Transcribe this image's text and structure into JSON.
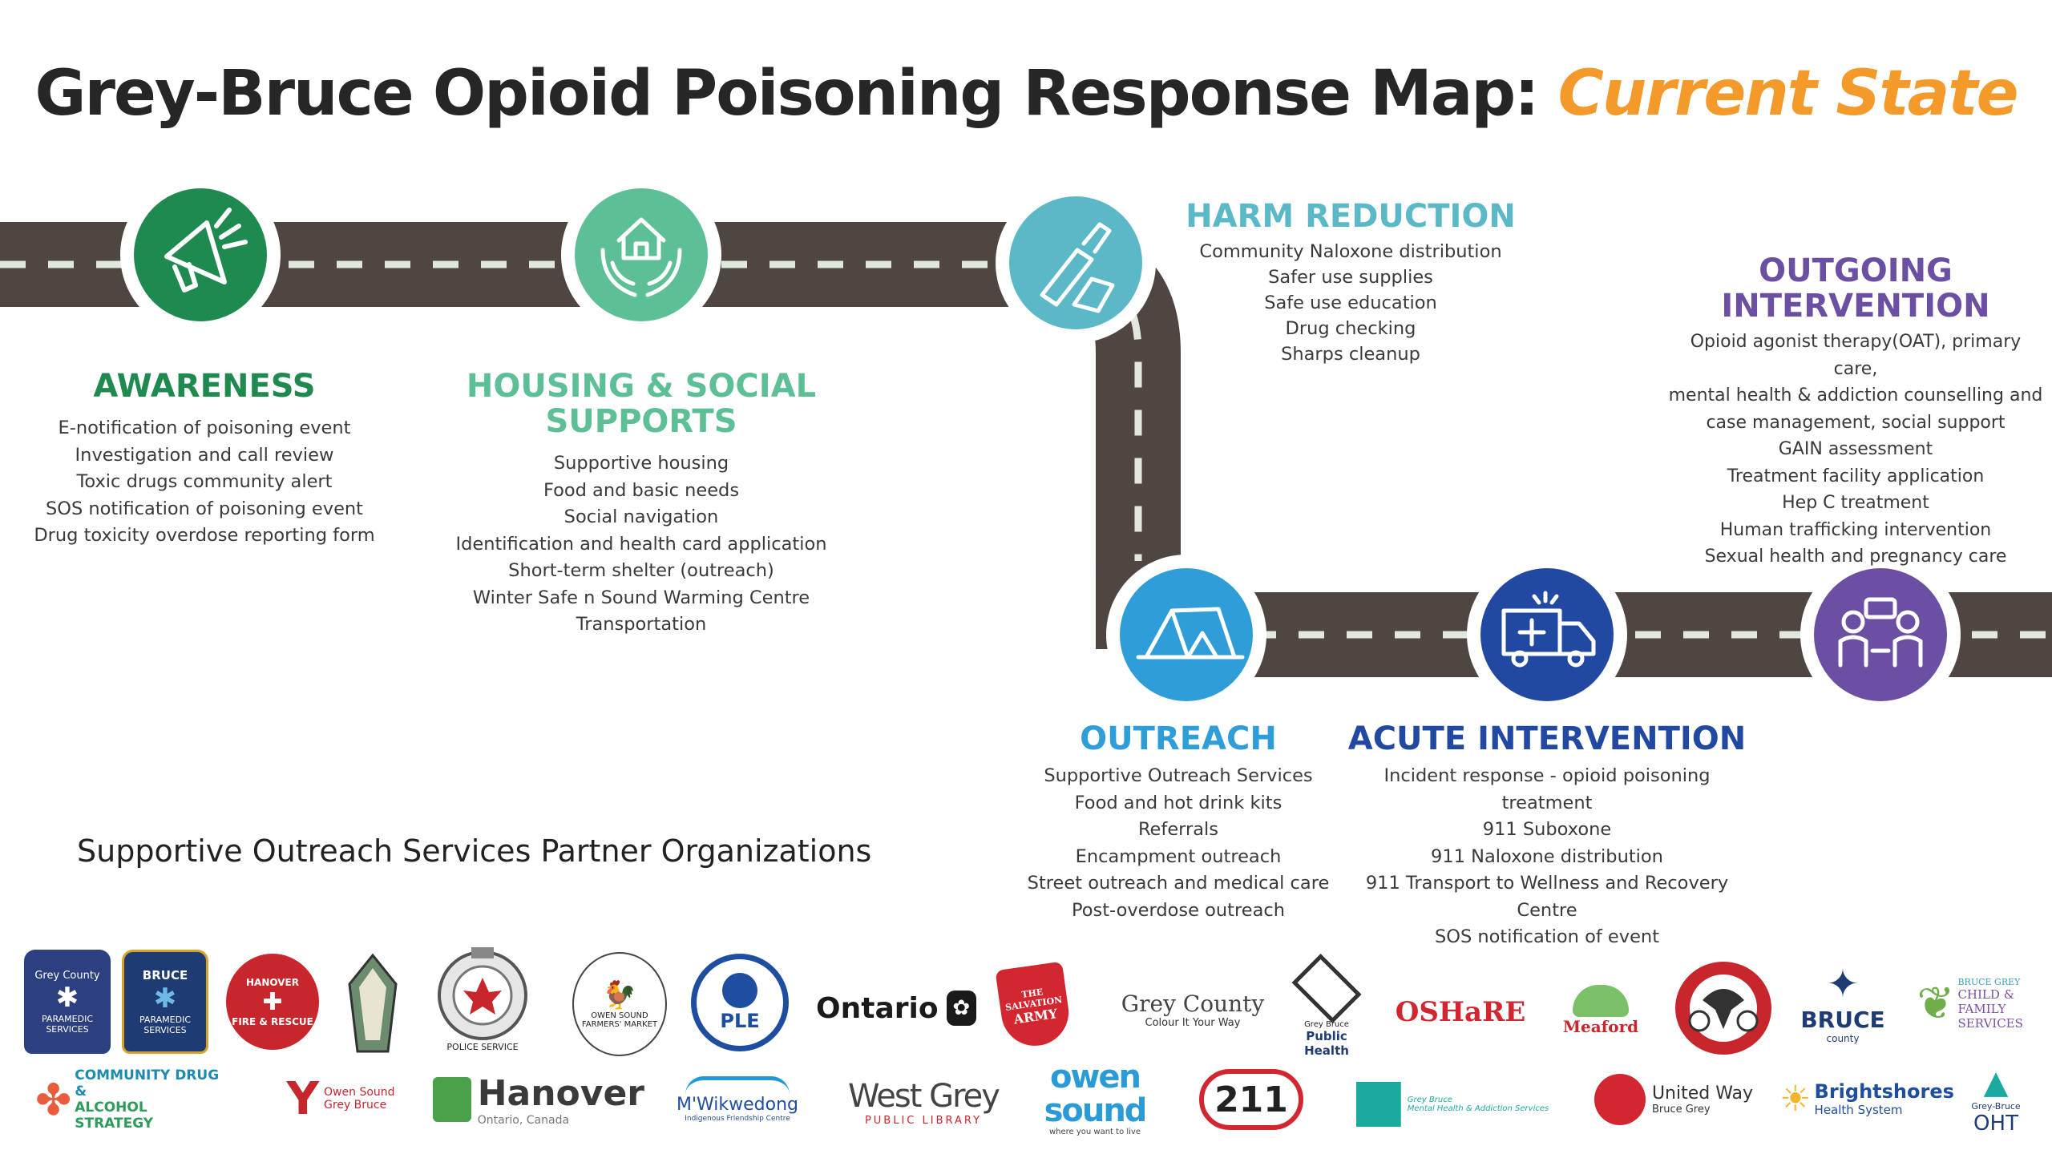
{
  "title": {
    "main": "Grey-Bruce Opioid Poisoning Response Map:",
    "highlight": "Current State"
  },
  "colors": {
    "road": "#4f4642",
    "dash": "#e3e8df",
    "awareness": "#1f8a4f",
    "housing": "#5cbf95",
    "harm": "#5bb8c6",
    "outreach": "#2f9ed8",
    "acute": "#2249a1",
    "outgoing": "#6a4fa3",
    "accent": "#f39a2b"
  },
  "stages": {
    "awareness": {
      "icon": "megaphone-icon",
      "title": "AWARENESS",
      "items": [
        "E-notification of poisoning event",
        "Investigation and call review",
        "Toxic drugs community alert",
        "SOS notification of poisoning event",
        "Drug toxicity overdose reporting form"
      ]
    },
    "housing": {
      "icon": "house-hands-icon",
      "title_line1": "HOUSING & SOCIAL",
      "title_line2": "SUPPORTS",
      "items": [
        "Supportive housing",
        "Food and basic needs",
        "Social navigation",
        "Identification and health card application",
        "Short-term shelter (outreach)",
        "Winter Safe n Sound Warming Centre",
        "Transportation"
      ]
    },
    "harm_reduction": {
      "icon": "naloxone-icon",
      "title": "HARM REDUCTION",
      "items": [
        "Community Naloxone distribution",
        "Safer use supplies",
        "Safe use education",
        "Drug checking",
        "Sharps cleanup"
      ]
    },
    "outreach": {
      "icon": "tent-icon",
      "title": "OUTREACH",
      "items": [
        "Supportive Outreach Services",
        "Food and hot drink kits",
        "Referrals",
        "Encampment outreach",
        "Street outreach and medical care",
        "Post-overdose outreach"
      ]
    },
    "acute": {
      "icon": "ambulance-icon",
      "title": "ACUTE INTERVENTION",
      "items": [
        "Incident response - opioid poisoning treatment",
        "911 Suboxone",
        "911 Naloxone distribution",
        "911 Transport to Wellness and Recovery Centre",
        "SOS notification of event"
      ]
    },
    "outgoing": {
      "icon": "counselling-icon",
      "title_line1": "OUTGOING",
      "title_line2": "INTERVENTION",
      "items": [
        "Opioid agonist therapy(OAT), primary care,",
        "mental health & addiction counselling and",
        "case management, social support",
        "GAIN assessment",
        "Treatment facility application",
        "Hep C treatment",
        "Human trafficking intervention",
        "Sexual health and pregnancy care"
      ]
    }
  },
  "partners_heading": "Supportive Outreach Services Partner Organizations",
  "logos_row1": [
    {
      "l1": "Grey County",
      "l2": "PARAMEDIC SERVICES"
    },
    {
      "l1": "BRUCE",
      "l2": "PARAMEDIC SERVICES"
    },
    {
      "l1": "HANOVER",
      "l2": "FIRE & RESCUE"
    },
    {
      "l1": "",
      "l2": ""
    },
    {
      "l1": "OWEN SOUND",
      "l2": "POLICE SERVICE"
    },
    {
      "l1": "OWEN SOUND",
      "l2": "FARMERS' MARKET"
    },
    {
      "l1": "PLE",
      "l2": ""
    },
    {
      "l1": "Ontario",
      "l2": ""
    },
    {
      "l1": "THE SALVATION",
      "l2": "ARMY"
    },
    {
      "l1": "Grey County",
      "l2": "Colour It Your Way"
    },
    {
      "l1": "Grey Bruce",
      "l2": "Public Health"
    },
    {
      "l1": "OSHaRE",
      "l2": ""
    },
    {
      "l1": "Meaford",
      "l2": ""
    },
    {
      "l1": "",
      "l2": ""
    },
    {
      "l1": "BRUCE",
      "l2": "county"
    },
    {
      "l1": "BRUCE GREY",
      "l2": "CHILD & FAMILY SERVICES"
    }
  ],
  "logos_row2": [
    {
      "l1": "COMMUNITY DRUG &",
      "l2": "ALCOHOL STRATEGY"
    },
    {
      "l1": "Owen Sound",
      "l2": "Grey Bruce"
    },
    {
      "l1": "Hanover",
      "l2": "Ontario, Canada"
    },
    {
      "l1": "M'Wikwedong",
      "l2": "Indigenous Friendship Centre"
    },
    {
      "l1": "West Grey",
      "l2": "PUBLIC LIBRARY"
    },
    {
      "l1": "owen sound",
      "l2": "where you want to live"
    },
    {
      "l1": "211",
      "l2": ""
    },
    {
      "l1": "Grey Bruce",
      "l2": "Mental Health & Addiction Services"
    },
    {
      "l1": "United Way",
      "l2": "Bruce Grey"
    },
    {
      "l1": "Brightshores",
      "l2": "Health System"
    },
    {
      "l1": "Grey-Bruce",
      "l2": "OHT"
    }
  ]
}
